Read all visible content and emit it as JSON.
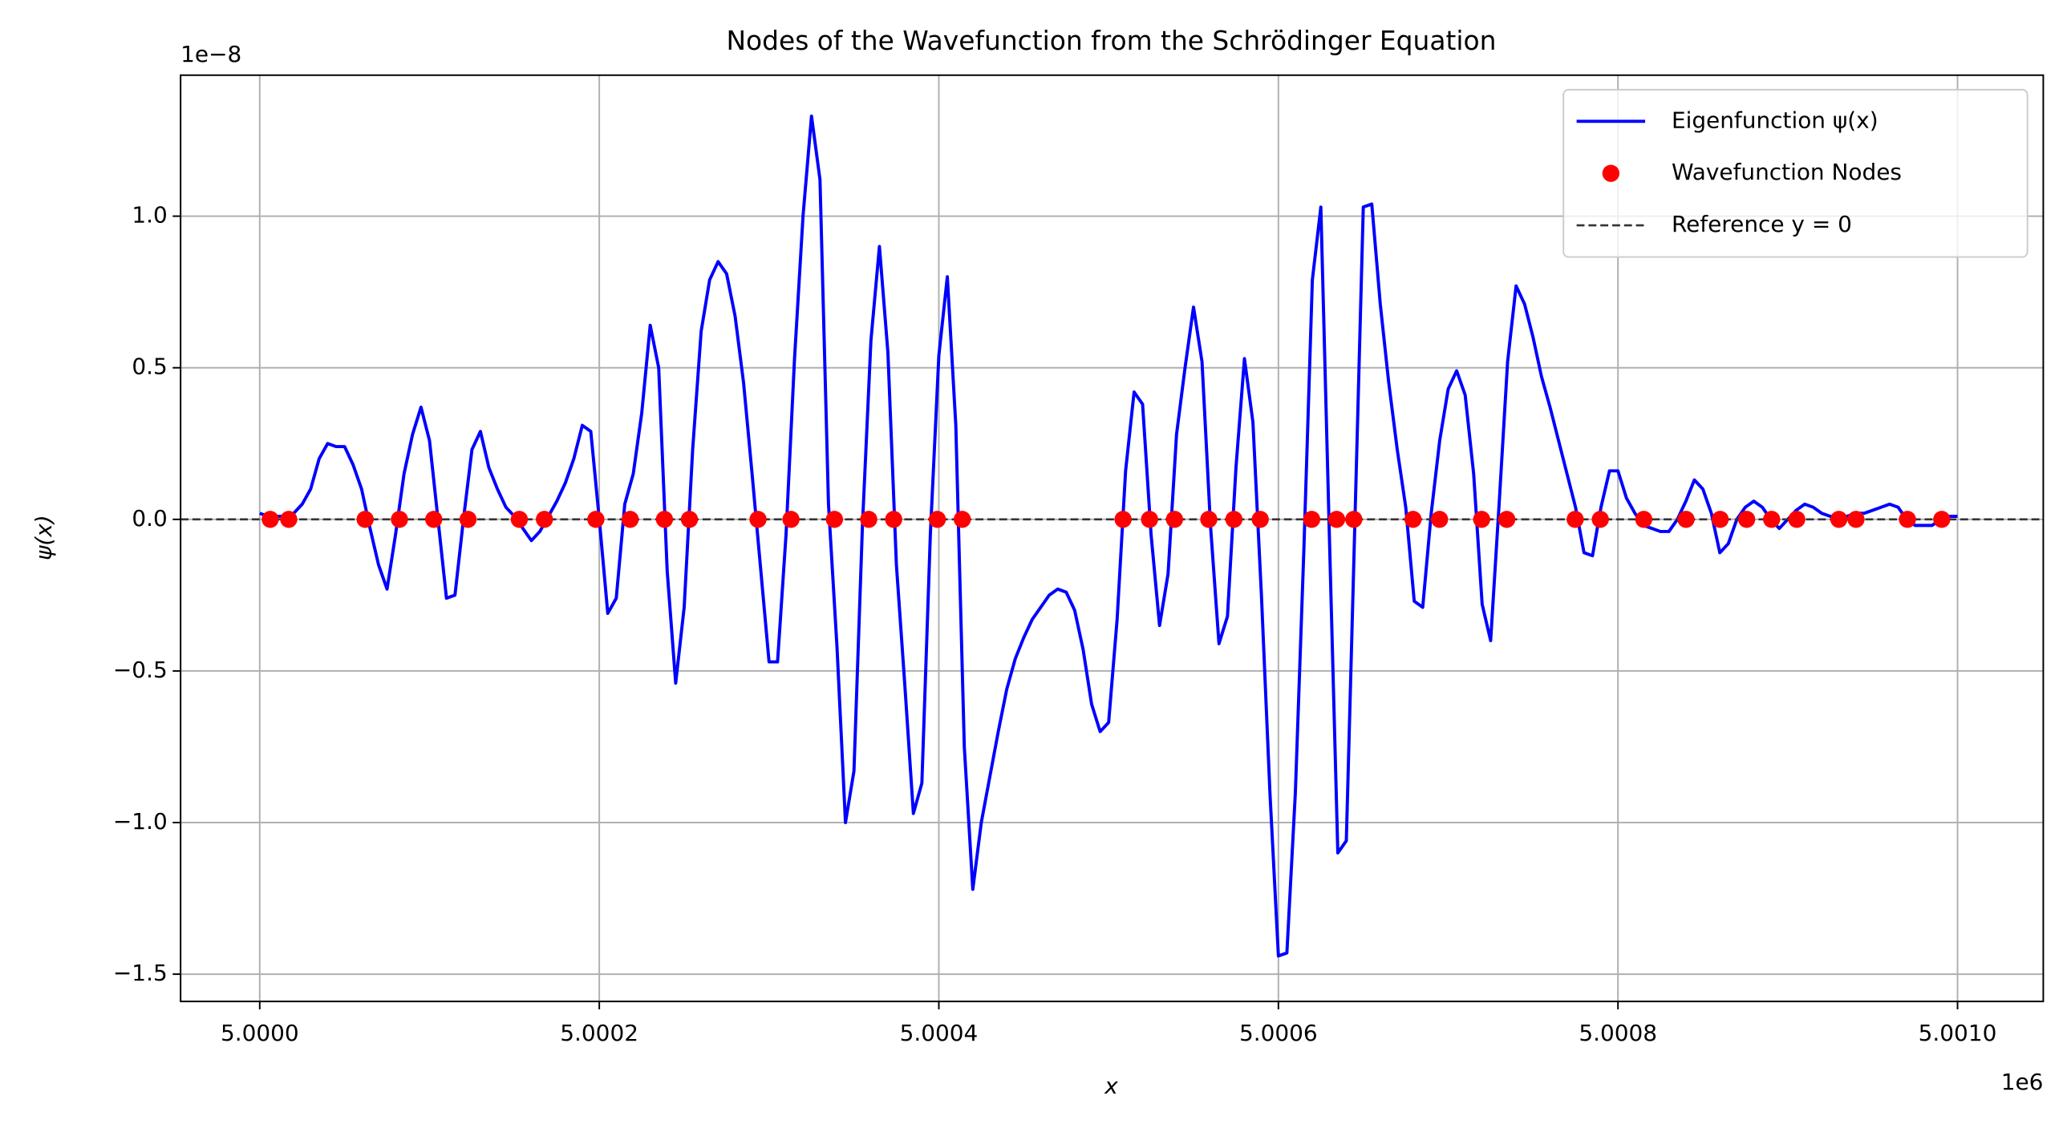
{
  "chart_data": {
    "type": "line",
    "title": "Nodes of the Wavefunction from the Schrödinger Equation",
    "x_label": "x",
    "y_label": "ψ(x)",
    "x_offset_label": "1e6",
    "y_offset_label": "1e−8",
    "xlim": [
      4.9999534,
      5.0010505
    ],
    "ylim": [
      -1.59,
      1.465
    ],
    "xticks": [
      {
        "value": 5.0,
        "label": "5.0000"
      },
      {
        "value": 5.0002,
        "label": "5.0002"
      },
      {
        "value": 5.0004,
        "label": "5.0004"
      },
      {
        "value": 5.0006,
        "label": "5.0006"
      },
      {
        "value": 5.0008,
        "label": "5.0008"
      },
      {
        "value": 5.001,
        "label": "5.0010"
      }
    ],
    "yticks": [
      {
        "value": -1.5,
        "label": "−1.5"
      },
      {
        "value": -1.0,
        "label": "−1.0"
      },
      {
        "value": -0.5,
        "label": "−0.5"
      },
      {
        "value": 0,
        "label": "0.0"
      },
      0.5,
      {
        "value": 1.0,
        "label": "1.0"
      }
    ],
    "grid": true,
    "legend": "upper right",
    "series": [
      {
        "name": "Eigenfunction ψ(x)",
        "type": "line",
        "color": "#0000ff",
        "x": [
          5,
          5.000005,
          5.00001,
          5.000015,
          5.00002,
          5.000025,
          5.00003,
          5.000035,
          5.00004,
          5.000045,
          5.00005,
          5.000055,
          5.00006,
          5.000065,
          5.00007,
          5.000075,
          5.00008,
          5.000085,
          5.00009,
          5.000095,
          5.0001,
          5.000105,
          5.00011,
          5.000115,
          5.00012,
          5.000125,
          5.00013,
          5.000135,
          5.00014,
          5.000145,
          5.00015,
          5.000155,
          5.00016,
          5.000165,
          5.00017,
          5.000175,
          5.00018,
          5.000185,
          5.00019,
          5.000195,
          5.0002,
          5.000205,
          5.00021,
          5.000215,
          5.00022,
          5.000225,
          5.00023,
          5.000235,
          5.00024,
          5.000245,
          5.00025,
          5.000255,
          5.00026,
          5.000265,
          5.00027,
          5.000275,
          5.00028,
          5.000285,
          5.00029,
          5.000295,
          5.0003,
          5.000305,
          5.00031,
          5.000315,
          5.00032,
          5.000325,
          5.00033,
          5.000335,
          5.00034,
          5.000345,
          5.00035,
          5.000355,
          5.00036,
          5.000365,
          5.00037,
          5.000375,
          5.00038,
          5.000385,
          5.00039,
          5.000395,
          5.0004,
          5.000405,
          5.00041,
          5.000415,
          5.00042,
          5.000425,
          5.00043,
          5.000435,
          5.00044,
          5.000445,
          5.00045,
          5.000455,
          5.00046,
          5.000465,
          5.00047,
          5.000475,
          5.00048,
          5.000485,
          5.00049,
          5.000495,
          5.0005,
          5.000505,
          5.00051,
          5.000515,
          5.00052,
          5.000525,
          5.00053,
          5.000535,
          5.00054,
          5.000545,
          5.00055,
          5.000555,
          5.00056,
          5.000565,
          5.00057,
          5.000575,
          5.00058,
          5.000585,
          5.00059,
          5.000595,
          5.0006,
          5.000605,
          5.00061,
          5.000615,
          5.00062,
          5.000625,
          5.00063,
          5.000635,
          5.00064,
          5.000645,
          5.00065,
          5.000655,
          5.00066,
          5.000665,
          5.00067,
          5.000675,
          5.00068,
          5.000685,
          5.00069,
          5.000695,
          5.0007,
          5.000705,
          5.00071,
          5.000715,
          5.00072,
          5.000725,
          5.00073,
          5.000735,
          5.00074,
          5.000745,
          5.00075,
          5.000755,
          5.00076,
          5.000765,
          5.00077,
          5.000775,
          5.00078,
          5.000785,
          5.00079,
          5.000795,
          5.0008,
          5.000805,
          5.00081,
          5.000815,
          5.00082,
          5.000825,
          5.00083,
          5.000835,
          5.00084,
          5.000845,
          5.00085,
          5.000855,
          5.00086,
          5.000865,
          5.00087,
          5.000875,
          5.00088,
          5.000885,
          5.00089,
          5.000895,
          5.0009,
          5.000905,
          5.00091,
          5.000915,
          5.00092,
          5.000925,
          5.00093,
          5.000935,
          5.00094,
          5.000945,
          5.00095,
          5.000955,
          5.00096,
          5.000965,
          5.00097,
          5.000975,
          5.00098,
          5.000985,
          5.00099,
          5.000995,
          5.001
        ],
        "values": [
          0.02,
          0.01,
          0.01,
          0.01,
          0.02,
          0.05,
          0.1,
          0.2,
          0.25,
          0.24,
          0.24,
          0.18,
          0.1,
          -0.03,
          -0.15,
          -0.23,
          -0.05,
          0.15,
          0.28,
          0.37,
          0.26,
          0,
          -0.26,
          -0.25,
          0,
          0.23,
          0.29,
          0.17,
          0.1,
          0.04,
          0.01,
          -0.03,
          -0.07,
          -0.04,
          0.01,
          0.06,
          0.12,
          0.2,
          0.31,
          0.29,
          0,
          -0.31,
          -0.26,
          0.05,
          0.15,
          0.35,
          0.64,
          0.5,
          -0.17,
          -0.54,
          -0.29,
          0.23,
          0.62,
          0.79,
          0.85,
          0.81,
          0.67,
          0.45,
          0.15,
          -0.16,
          -0.47,
          -0.47,
          -0.05,
          0.53,
          1,
          1.33,
          1.12,
          0.05,
          -0.42,
          -1,
          -0.83,
          -0.02,
          0.59,
          0.9,
          0.55,
          -0.15,
          -0.55,
          -0.97,
          -0.87,
          -0.05,
          0.54,
          0.8,
          0.31,
          -0.75,
          -1.22,
          -1,
          -0.85,
          -0.7,
          -0.56,
          -0.46,
          -0.39,
          -0.33,
          -0.29,
          -0.25,
          -0.23,
          -0.24,
          -0.3,
          -0.43,
          -0.61,
          -0.7,
          -0.67,
          -0.33,
          0.16,
          0.42,
          0.38,
          -0.05,
          -0.35,
          -0.18,
          0.28,
          0.5,
          0.7,
          0.52,
          -0.02,
          -0.41,
          -0.32,
          0.17,
          0.53,
          0.32,
          -0.25,
          -0.9,
          -1.44,
          -1.43,
          -0.9,
          -0.1,
          0.79,
          1.03,
          -0.05,
          -1.1,
          -1.06,
          -0.02,
          1.03,
          1.04,
          0.71,
          0.45,
          0.23,
          0.04,
          -0.27,
          -0.29,
          0.02,
          0.26,
          0.43,
          0.49,
          0.41,
          0.15,
          -0.28,
          -0.4,
          0.05,
          0.52,
          0.77,
          0.71,
          0.6,
          0.47,
          0.37,
          0.26,
          0.15,
          0.04,
          -0.11,
          -0.12,
          0.04,
          0.16,
          0.16,
          0.07,
          0.02,
          -0.02,
          -0.03,
          -0.04,
          -0.04,
          0,
          0.06,
          0.13,
          0.1,
          0.02,
          -0.11,
          -0.08,
          0,
          0.04,
          0.06,
          0.04,
          0,
          -0.03,
          0,
          0.03,
          0.05,
          0.04,
          0.02,
          0.01,
          0.01,
          0.01,
          0.02,
          0.02,
          0.03,
          0.04,
          0.05,
          0.04,
          0,
          -0.02,
          -0.02,
          -0.02,
          0,
          0.01,
          0.01
        ]
      },
      {
        "name": "Wavefunction Nodes",
        "type": "scatter",
        "color": "#ff0000",
        "x": [
          5.0000062,
          5.0000171,
          5.0000621,
          5.0000823,
          5.0001025,
          5.0001227,
          5.0001529,
          5.0001677,
          5.000198,
          5.0002182,
          5.0002384,
          5.0002531,
          5.0002935,
          5.0003129,
          5.0003385,
          5.0003587,
          5.0003734,
          5.0003991,
          5.0004138,
          5.0005085,
          5.0005241,
          5.0005388,
          5.000559,
          5.0005738,
          5.0005893,
          5.0006196,
          5.0006343,
          5.0006444,
          5.0006793,
          5.0006949,
          5.0007197,
          5.0007345,
          5.0007748,
          5.0007896,
          5.0008152,
          5.0008401,
          5.0008602,
          5.0008758,
          5.0008905,
          5.0009053,
          5.0009301,
          5.0009402,
          5.0009705,
          5.0009907
        ],
        "values": [
          0,
          0,
          0,
          0,
          0,
          0,
          0,
          0,
          0,
          0,
          0,
          0,
          0,
          0,
          0,
          0,
          0,
          0,
          0,
          0,
          0,
          0,
          0,
          0,
          0,
          0,
          0,
          0,
          0,
          0,
          0,
          0,
          0,
          0,
          0,
          0,
          0,
          0,
          0,
          0,
          0,
          0,
          0,
          0
        ]
      }
    ],
    "reference": {
      "name": "Reference y = 0",
      "y": 0,
      "color": "#333333"
    }
  }
}
